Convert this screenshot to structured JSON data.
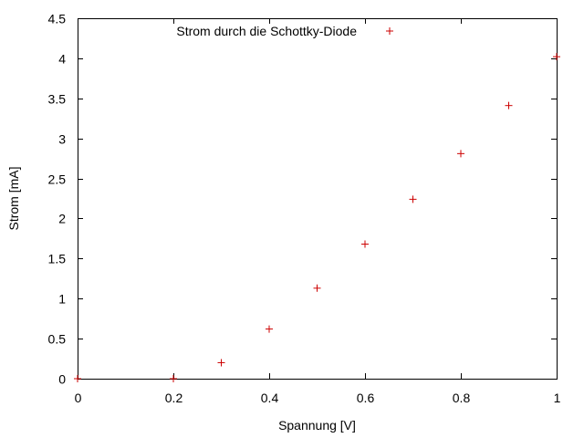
{
  "chart_data": {
    "type": "scatter",
    "title": "",
    "xlabel": "Spannung [V]",
    "ylabel": "Strom [mA]",
    "xlim": [
      0,
      1
    ],
    "ylim": [
      0,
      4.5
    ],
    "x_ticks": [
      "0",
      "0.2",
      "0.4",
      "0.6",
      "0.8",
      "1"
    ],
    "y_ticks": [
      "0",
      "0.5",
      "1",
      "1.5",
      "2",
      "2.5",
      "3",
      "3.5",
      "4",
      "4.5"
    ],
    "grid": false,
    "legend_position": "top-right",
    "marker": "plus",
    "series": [
      {
        "name": "Strom durch die Schottky-Diode",
        "color": "#cc0000",
        "x": [
          0.0,
          0.2,
          0.3,
          0.4,
          0.5,
          0.6,
          0.7,
          0.8,
          0.9,
          1.0
        ],
        "y": [
          0.0,
          0.0,
          0.2,
          0.62,
          1.13,
          1.68,
          2.24,
          2.81,
          3.41,
          4.02
        ]
      }
    ]
  }
}
